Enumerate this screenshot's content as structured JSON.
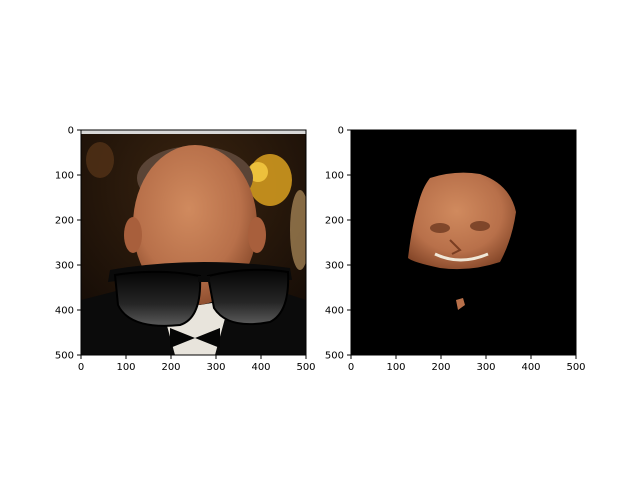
{
  "figure": {
    "panels": [
      {
        "name": "left-panel",
        "subject": "man-with-sunglasses",
        "xlim": [
          0,
          500
        ],
        "ylim": [
          500,
          0
        ],
        "xticks": [
          "0",
          "100",
          "200",
          "300",
          "400",
          "500"
        ],
        "yticks": [
          "0",
          "100",
          "200",
          "300",
          "400",
          "500"
        ]
      },
      {
        "name": "right-panel",
        "subject": "face-mask",
        "xlim": [
          0,
          500
        ],
        "ylim": [
          500,
          0
        ],
        "xticks": [
          "0",
          "100",
          "200",
          "300",
          "400",
          "500"
        ],
        "yticks": [
          "0",
          "100",
          "200",
          "300",
          "400",
          "500"
        ]
      }
    ],
    "colors": {
      "background": "#ffffff",
      "mask_background": "#000000",
      "skin": "#b8704a",
      "lens": "#1a1a1a"
    }
  }
}
